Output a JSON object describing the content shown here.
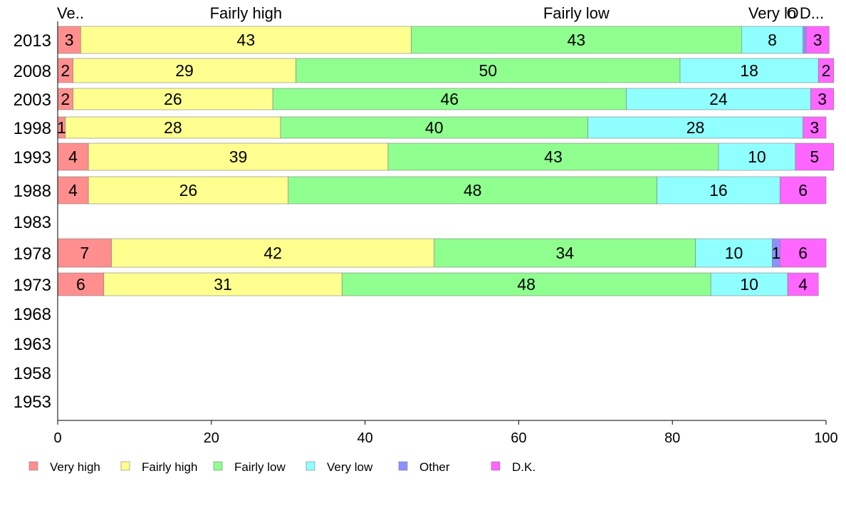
{
  "chart_data": {
    "type": "bar",
    "orientation": "horizontal",
    "stacked": true,
    "categories": [
      "2013",
      "2008",
      "2003",
      "1998",
      "1993",
      "1988",
      "1983",
      "1978",
      "1973",
      "1968",
      "1963",
      "1958",
      "1953"
    ],
    "series": [
      {
        "name": "Very high",
        "color": "#ff8f8f",
        "values": [
          3,
          2,
          2,
          1,
          4,
          4,
          null,
          7,
          6,
          null,
          null,
          null,
          null
        ]
      },
      {
        "name": "Fairly high",
        "color": "#ffff8f",
        "values": [
          43,
          29,
          26,
          28,
          39,
          26,
          null,
          42,
          31,
          null,
          null,
          null,
          null
        ]
      },
      {
        "name": "Fairly low",
        "color": "#8fff8f",
        "values": [
          43,
          50,
          46,
          40,
          43,
          48,
          null,
          34,
          48,
          null,
          null,
          null,
          null
        ]
      },
      {
        "name": "Very low",
        "color": "#8fffff",
        "values": [
          8,
          18,
          24,
          28,
          10,
          16,
          null,
          10,
          10,
          null,
          null,
          null,
          null
        ]
      },
      {
        "name": "Other",
        "color": "#8f8fff",
        "values": [
          0.4,
          0,
          0,
          0,
          0,
          0,
          null,
          1,
          0,
          null,
          null,
          null,
          null
        ]
      },
      {
        "name": "D.K.",
        "color": "#ff66ff",
        "values": [
          3,
          2,
          3,
          3,
          5,
          6,
          null,
          6,
          4,
          null,
          null,
          null,
          null
        ]
      }
    ],
    "data_labels": [
      [
        "3",
        "43",
        "43",
        "8",
        "",
        "3"
      ],
      [
        "2",
        "29",
        "50",
        "18",
        "",
        "2"
      ],
      [
        "2",
        "26",
        "46",
        "24",
        "",
        "3"
      ],
      [
        "1",
        "28",
        "40",
        "28",
        "",
        "3"
      ],
      [
        "4",
        "39",
        "43",
        "10",
        "",
        "5"
      ],
      [
        "4",
        "26",
        "48",
        "16",
        "",
        "6"
      ],
      null,
      [
        "7",
        "42",
        "34",
        "10",
        "1",
        "6"
      ],
      [
        "6",
        "31",
        "48",
        "10",
        "",
        "4"
      ],
      null,
      null,
      null,
      null
    ],
    "top_labels": [
      "Ve..",
      "Fairly high",
      "Fairly low",
      "Very lo",
      "O",
      "D..."
    ],
    "xlim": [
      0,
      100
    ],
    "xticks": [
      "0",
      "20",
      "40",
      "60",
      "80",
      "100"
    ],
    "title": "",
    "xlabel": "",
    "ylabel": "",
    "grid": false,
    "legend_position": "bottom"
  }
}
